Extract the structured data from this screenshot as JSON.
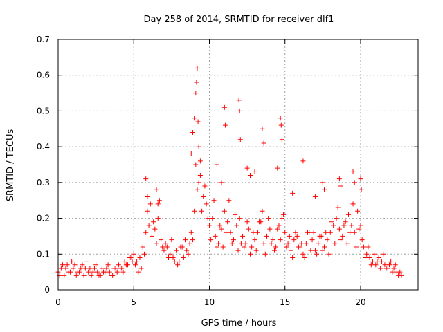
{
  "chart_data": {
    "type": "scatter",
    "title": "Day 258 of 2014, SRMTID for receiver dlf1",
    "xlabel": "GPS time / hours",
    "ylabel": "SRMTID / TECUs",
    "xlim": [
      0,
      23.8
    ],
    "ylim": [
      0,
      0.7
    ],
    "xticks": [
      0,
      5,
      10,
      15,
      20
    ],
    "yticks": [
      0,
      0.1,
      0.2,
      0.3,
      0.4,
      0.5,
      0.6,
      0.7
    ],
    "ytick_labels": [
      "0",
      "0.1",
      "0.2",
      "0.3",
      "0.4",
      "0.5",
      "0.6",
      "0.7"
    ],
    "grid": true,
    "marker": "plus",
    "color": "#ff0000",
    "series": [
      {
        "name": "SRMTID",
        "x": [
          0.0,
          0.2,
          0.4,
          0.6,
          0.8,
          1.0,
          1.2,
          1.4,
          1.6,
          1.8,
          2.0,
          2.2,
          2.4,
          2.6,
          2.8,
          3.0,
          3.2,
          3.4,
          3.6,
          3.8,
          4.0,
          4.2,
          4.4,
          4.6,
          4.8,
          5.0,
          5.2,
          5.4,
          5.6,
          5.8,
          6.0,
          6.2,
          6.4,
          6.6,
          6.8,
          7.0,
          7.2,
          7.4,
          7.6,
          7.8,
          8.0,
          8.2,
          8.4,
          8.6,
          8.8,
          9.0,
          9.2,
          9.4,
          9.6,
          9.8,
          10.0,
          10.2,
          10.4,
          10.6,
          10.8,
          11.0,
          11.2,
          11.4,
          11.6,
          11.8,
          12.0,
          12.2,
          12.4,
          12.6,
          12.8,
          13.0,
          13.2,
          13.4,
          13.6,
          13.8,
          14.0,
          14.2,
          14.4,
          14.6,
          14.8,
          15.0,
          15.2,
          15.4,
          15.6,
          15.8,
          16.0,
          16.2,
          16.4,
          16.6,
          16.8,
          17.0,
          17.2,
          17.4,
          17.6,
          17.8,
          18.0,
          18.2,
          18.4,
          18.6,
          18.8,
          19.0,
          19.2,
          19.4,
          19.6,
          19.8,
          20.0,
          20.2,
          20.4,
          20.6,
          20.8,
          21.0,
          21.2,
          21.4,
          21.6,
          21.8,
          22.0,
          22.2,
          22.4,
          22.6,
          0.1,
          0.3,
          0.5,
          0.7,
          0.9,
          1.1,
          1.3,
          1.5,
          1.7,
          1.9,
          2.1,
          2.3,
          2.5,
          2.7,
          2.9,
          3.1,
          3.3,
          3.5,
          3.7,
          3.9,
          4.1,
          4.3,
          4.5,
          4.7,
          4.9,
          5.1,
          5.3,
          5.5,
          5.7,
          5.9,
          6.1,
          6.3,
          6.5,
          6.7,
          6.9,
          7.1,
          7.3,
          7.5,
          7.7,
          7.9,
          8.1,
          8.3,
          8.5,
          8.7,
          8.9,
          9.1,
          9.3,
          9.5,
          9.7,
          9.9,
          10.1,
          10.3,
          10.5,
          10.7,
          10.9,
          11.1,
          11.3,
          11.5,
          11.7,
          11.9,
          12.1,
          12.3,
          12.5,
          12.7,
          12.9,
          13.1,
          13.3,
          13.5,
          13.7,
          13.9,
          14.1,
          14.3,
          14.5,
          14.7,
          14.9,
          15.1,
          15.3,
          15.5,
          15.7,
          15.9,
          16.1,
          16.3,
          16.5,
          16.7,
          16.9,
          17.1,
          17.3,
          17.5,
          17.7,
          17.9,
          18.1,
          18.3,
          18.5,
          18.7,
          18.9,
          19.1,
          19.3,
          19.5,
          19.7,
          19.9,
          20.1,
          20.3,
          20.5,
          20.7,
          20.9,
          21.1,
          21.3,
          21.5,
          21.7,
          21.9,
          22.1,
          22.3,
          22.5,
          22.7,
          5.8,
          5.9,
          6.5,
          6.6,
          9.0,
          9.1,
          9.2,
          9.15,
          9.25,
          11.0,
          11.05,
          11.95,
          12.0,
          12.05,
          13.5,
          13.6,
          14.7,
          14.75,
          14.8,
          16.2,
          17.5,
          17.6,
          18.6,
          18.7,
          19.5,
          19.6,
          20.0,
          20.05,
          8.8,
          8.9,
          9.3,
          9.4,
          10.5,
          10.8,
          12.5,
          12.7,
          13.0,
          14.5,
          15.5,
          17.0
        ],
        "y": [
          0.05,
          0.06,
          0.04,
          0.07,
          0.05,
          0.06,
          0.04,
          0.05,
          0.07,
          0.06,
          0.05,
          0.04,
          0.06,
          0.05,
          0.04,
          0.05,
          0.06,
          0.05,
          0.04,
          0.06,
          0.07,
          0.06,
          0.08,
          0.07,
          0.09,
          0.1,
          0.08,
          0.09,
          0.12,
          0.16,
          0.18,
          0.15,
          0.17,
          0.2,
          0.14,
          0.11,
          0.12,
          0.1,
          0.09,
          0.11,
          0.08,
          0.12,
          0.14,
          0.1,
          0.16,
          0.22,
          0.28,
          0.32,
          0.26,
          0.24,
          0.18,
          0.2,
          0.15,
          0.13,
          0.17,
          0.22,
          0.19,
          0.16,
          0.14,
          0.18,
          0.2,
          0.15,
          0.13,
          0.17,
          0.12,
          0.14,
          0.16,
          0.19,
          0.13,
          0.15,
          0.17,
          0.14,
          0.12,
          0.18,
          0.2,
          0.16,
          0.13,
          0.11,
          0.14,
          0.15,
          0.12,
          0.1,
          0.13,
          0.16,
          0.14,
          0.11,
          0.13,
          0.15,
          0.12,
          0.14,
          0.16,
          0.18,
          0.2,
          0.17,
          0.15,
          0.19,
          0.21,
          0.18,
          0.16,
          0.22,
          0.18,
          0.12,
          0.1,
          0.09,
          0.08,
          0.07,
          0.09,
          0.08,
          0.07,
          0.06,
          0.08,
          0.06,
          0.05,
          0.05,
          0.04,
          0.07,
          0.06,
          0.05,
          0.08,
          0.07,
          0.05,
          0.06,
          0.04,
          0.08,
          0.06,
          0.05,
          0.07,
          0.04,
          0.06,
          0.05,
          0.07,
          0.04,
          0.06,
          0.05,
          0.06,
          0.05,
          0.07,
          0.09,
          0.08,
          0.07,
          0.05,
          0.06,
          0.1,
          0.22,
          0.24,
          0.19,
          0.13,
          0.25,
          0.12,
          0.13,
          0.09,
          0.14,
          0.08,
          0.07,
          0.12,
          0.09,
          0.11,
          0.13,
          0.14,
          0.35,
          0.3,
          0.22,
          0.29,
          0.2,
          0.14,
          0.25,
          0.12,
          0.18,
          0.12,
          0.16,
          0.25,
          0.13,
          0.21,
          0.11,
          0.13,
          0.12,
          0.19,
          0.1,
          0.16,
          0.11,
          0.19,
          0.22,
          0.1,
          0.2,
          0.13,
          0.11,
          0.17,
          0.14,
          0.21,
          0.12,
          0.15,
          0.09,
          0.16,
          0.12,
          0.13,
          0.09,
          0.16,
          0.11,
          0.16,
          0.1,
          0.15,
          0.11,
          0.16,
          0.1,
          0.19,
          0.13,
          0.23,
          0.14,
          0.18,
          0.13,
          0.16,
          0.24,
          0.12,
          0.17,
          0.14,
          0.09,
          0.12,
          0.07,
          0.1,
          0.08,
          0.06,
          0.1,
          0.06,
          0.07,
          0.05,
          0.07,
          0.04,
          0.04,
          0.31,
          0.26,
          0.28,
          0.24,
          0.48,
          0.55,
          0.62,
          0.58,
          0.47,
          0.51,
          0.46,
          0.53,
          0.5,
          0.42,
          0.45,
          0.41,
          0.48,
          0.46,
          0.42,
          0.36,
          0.3,
          0.28,
          0.31,
          0.29,
          0.33,
          0.3,
          0.31,
          0.28,
          0.38,
          0.44,
          0.4,
          0.36,
          0.35,
          0.3,
          0.34,
          0.32,
          0.33,
          0.34,
          0.27,
          0.26
        ]
      }
    ]
  }
}
